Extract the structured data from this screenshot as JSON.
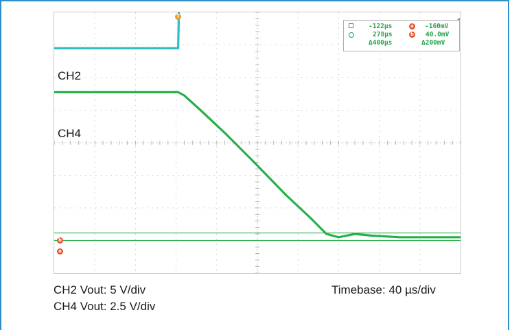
{
  "chart_data": {
    "type": "line",
    "x_unit": "div",
    "xlim": [
      0,
      10
    ],
    "ylim": [
      0,
      8
    ],
    "grid": true,
    "grid_divisions": {
      "x": 10,
      "y": 8
    },
    "series": [
      {
        "name": "CH2",
        "color": "#2bbcc4",
        "x": [
          0,
          3.05,
          3.07,
          3.3,
          10
        ],
        "y": [
          6.9,
          6.9,
          8.05,
          8.05,
          8.05
        ]
      },
      {
        "name": "CH4",
        "color": "#27b04a",
        "x": [
          0,
          3.05,
          3.2,
          3.6,
          4.2,
          5.0,
          5.7,
          6.3,
          6.7,
          7.0,
          7.4,
          7.8,
          8.5,
          10
        ],
        "y": [
          5.55,
          5.55,
          5.45,
          5.0,
          4.3,
          3.3,
          2.4,
          1.7,
          1.2,
          1.1,
          1.2,
          1.15,
          1.1,
          1.1
        ]
      }
    ],
    "reference_lines": [
      {
        "y": 1.23,
        "color": "#27b04a"
      },
      {
        "y": 1.0,
        "color": "#27b04a"
      }
    ]
  },
  "channels": {
    "ch2_label": "CH2",
    "ch4_label": "CH4"
  },
  "cursor_readout": {
    "row1_left": "-122µs",
    "row1_right": "-160mV",
    "row2_left": "278µs",
    "row2_right": "40.0mV",
    "row3_left": "Δ400µs",
    "row3_right": "Δ200mV",
    "marker_a": "a",
    "marker_b": "b"
  },
  "trigger_marker": "T",
  "captions": {
    "ch2_scale": "CH2 Vout: 5 V/div",
    "ch4_scale": "CH4 Vout: 2.5 V/div",
    "timebase": "Timebase: 40 µs/div"
  },
  "colors": {
    "frame": "#2e8fc8",
    "ch2": "#2bbcc4",
    "ch4": "#27b04a",
    "cursor_marker": "#e0522b"
  }
}
